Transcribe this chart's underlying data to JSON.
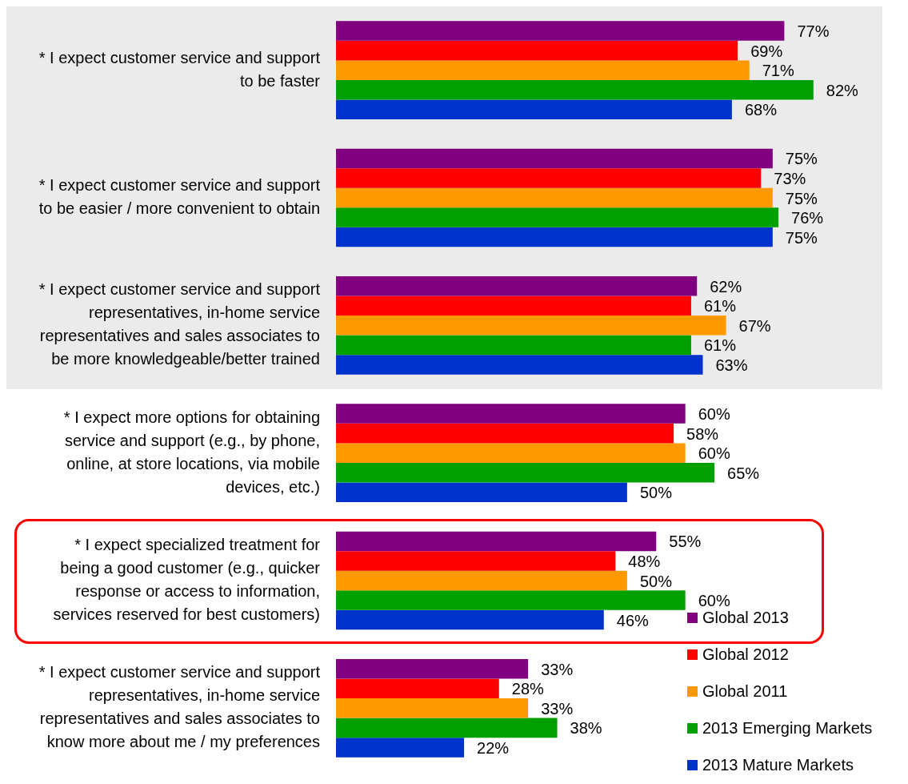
{
  "chart_data": {
    "type": "bar",
    "orientation": "horizontal",
    "categories": [
      "* I expect customer service and support to be faster",
      "* I expect customer service and support to be easier / more convenient to obtain",
      "* I expect customer service and support representatives, in-home service representatives and sales associates to be more knowledgeable/better trained",
      "* I expect more options for obtaining service and support (e.g., by phone, online, at store locations, via mobile devices, etc.)",
      "* I expect specialized treatment for being a good customer (e.g., quicker response or access to information, services reserved for best customers)",
      "* I expect customer service and support representatives, in-home service representatives and sales associates to know more about me / my preferences"
    ],
    "series": [
      {
        "name": "Global 2013",
        "color": "#800080",
        "values": [
          77,
          75,
          62,
          60,
          55,
          33
        ],
        "value_labels": [
          "77%",
          "75%",
          "62%",
          "60%",
          "55%",
          "33%"
        ]
      },
      {
        "name": "Global 2012",
        "color": "#ff0000",
        "values": [
          69,
          73,
          61,
          58,
          48,
          28
        ],
        "value_labels": [
          "69%",
          "73%",
          "61%",
          "58%",
          "48%",
          "28%"
        ]
      },
      {
        "name": "Global 2011",
        "color": "#ff9900",
        "values": [
          71,
          75,
          67,
          60,
          50,
          33
        ],
        "value_labels": [
          "71%",
          "75%",
          "67%",
          "60%",
          "50%",
          "33%"
        ]
      },
      {
        "name": "2013 Emerging Markets",
        "color": "#00a000",
        "values": [
          82,
          76,
          61,
          65,
          60,
          38
        ],
        "value_labels": [
          "82%",
          "76%",
          "61%",
          "65%",
          "60%",
          "38%"
        ]
      },
      {
        "name": "2013 Mature Markets",
        "color": "#0033cc",
        "values": [
          68,
          75,
          63,
          50,
          46,
          22
        ],
        "value_labels": [
          "68%",
          "75%",
          "63%",
          "50%",
          "46%",
          "22%"
        ]
      }
    ],
    "bands": [
      {
        "axis": "y",
        "from": "* I expect customer service and support to be faster",
        "to": "* I expect customer service and support representatives, in-home service representatives and sales associates to be more knowledgeable/better trained",
        "color": "#ebebeb"
      }
    ],
    "grid": false,
    "legend": "bottom right",
    "marker": "square"
  }
}
